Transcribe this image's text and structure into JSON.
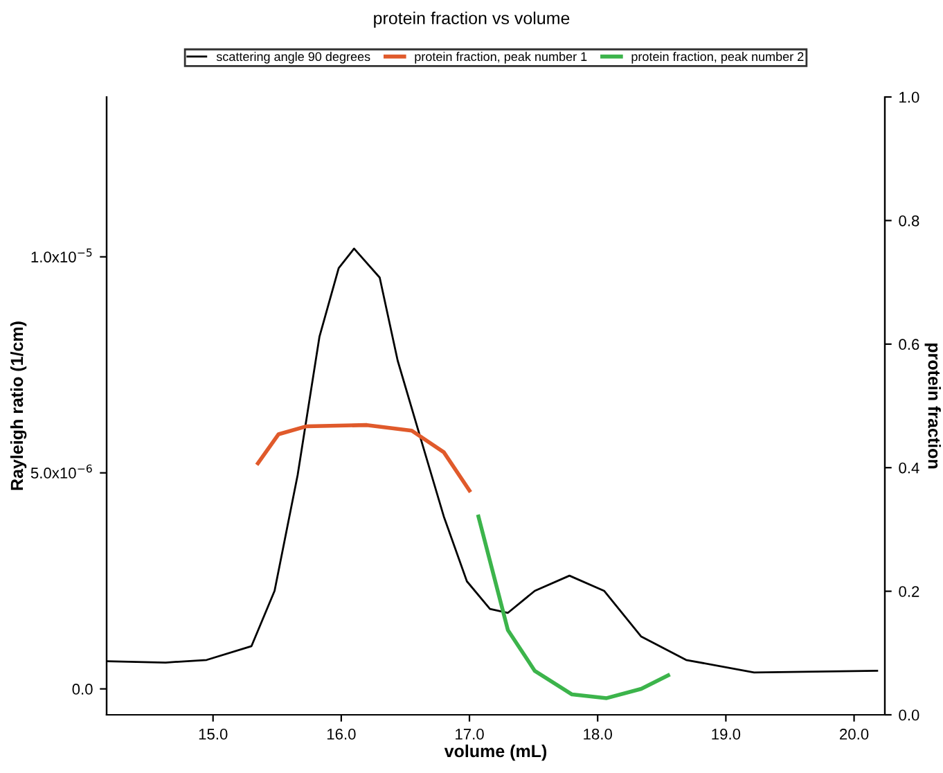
{
  "chart_data": {
    "type": "line",
    "title": "protein fraction vs volume",
    "xlabel": "volume (mL)",
    "ylabel": "Rayleigh ratio (1/cm)",
    "y2label": "protein fraction",
    "legend": "top",
    "grid": false,
    "marker": "none",
    "line_style": "solid",
    "xlim": [
      14.17,
      20.24
    ],
    "xticks": [
      {
        "value": 15,
        "label": "15.0"
      },
      {
        "value": 16,
        "label": "16.0"
      },
      {
        "value": 17,
        "label": "17.0"
      },
      {
        "value": 18,
        "label": "18.0"
      },
      {
        "value": 19,
        "label": "19.0"
      },
      {
        "value": 20,
        "label": "20.0"
      }
    ],
    "ylim": [
      -6e-07,
      1.37e-05
    ],
    "yticks": [
      {
        "value": 0,
        "label": "0.0"
      },
      {
        "value": 5e-06,
        "label": "5.0x10$^{−6}$"
      },
      {
        "value": 1e-05,
        "label": "1.0x10$^{−5}$"
      }
    ],
    "y2lim": [
      0,
      1.0
    ],
    "y2ticks": [
      {
        "value": 0,
        "label": "0.0"
      },
      {
        "value": 0.2,
        "label": "0.2"
      },
      {
        "value": 0.4,
        "label": "0.4"
      },
      {
        "value": 0.6,
        "label": "0.6"
      },
      {
        "value": 0.8,
        "label": "0.8"
      },
      {
        "value": 1.0,
        "label": "1.0"
      }
    ],
    "series": [
      {
        "name": "scattering angle 90 degrees",
        "color": "#000000",
        "x": [
          14.17,
          14.63,
          14.95,
          15.3,
          15.48,
          15.66,
          15.83,
          15.98,
          16.1,
          16.3,
          16.44,
          16.63,
          16.8,
          16.98,
          17.16,
          17.3,
          17.51,
          17.78,
          18.05,
          18.34,
          18.69,
          19.22,
          20.18
        ],
        "values": [
          6.4e-07,
          6.1e-07,
          6.7e-07,
          9.9e-07,
          2.27e-06,
          4.95e-06,
          8.15e-06,
          9.74e-06,
          1.019e-05,
          9.52e-06,
          7.6e-06,
          5.69e-06,
          3.99e-06,
          2.49e-06,
          1.85e-06,
          1.76e-06,
          2.27e-06,
          2.62e-06,
          2.27e-06,
          1.21e-06,
          6.7e-07,
          3.8e-07,
          4.2e-07
        ]
      },
      {
        "name": "protein fraction, peak number 1",
        "color": "#e05a2b",
        "axis": "y2",
        "x": [
          15.35,
          15.51,
          15.73,
          16.2,
          16.55,
          16.8,
          17.0
        ],
        "values": [
          0.407,
          0.454,
          0.467,
          0.469,
          0.46,
          0.425,
          0.363
        ]
      },
      {
        "name": "protein fraction, peak number 2",
        "color": "#3cb44b",
        "axis": "y2",
        "x": [
          17.07,
          17.17,
          17.3,
          17.51,
          17.8,
          18.07,
          18.34,
          18.55
        ],
        "values": [
          0.321,
          0.241,
          0.137,
          0.071,
          0.033,
          0.027,
          0.042,
          0.064
        ]
      }
    ]
  }
}
